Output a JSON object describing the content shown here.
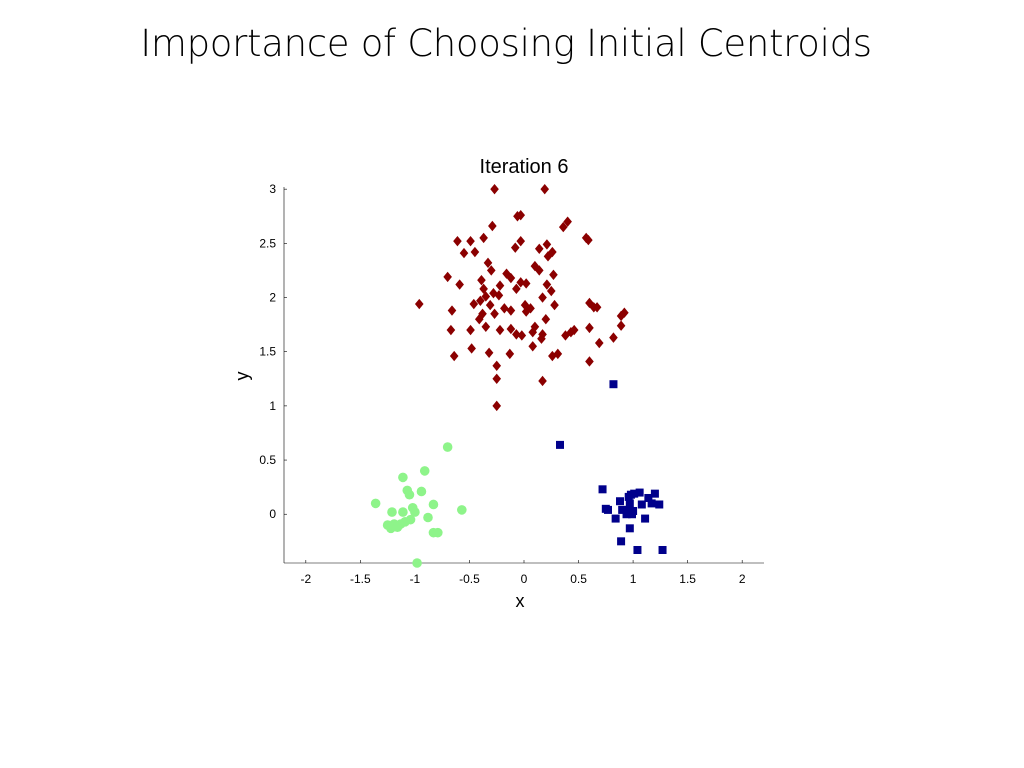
{
  "slide": {
    "title": "Importance of Choosing Initial Centroids"
  },
  "chart_data": {
    "type": "scatter",
    "title": "Iteration 6",
    "xlabel": "x",
    "ylabel": "y",
    "xlim": [
      -2.2,
      2.2
    ],
    "ylim": [
      -0.45,
      3.02
    ],
    "xticks": [
      -2,
      -1.5,
      -1,
      -0.5,
      0,
      0.5,
      1,
      1.5,
      2
    ],
    "xtick_labels": [
      "-2",
      "-1.5",
      "-1",
      "-0.5",
      "0",
      "0.5",
      "1",
      "1.5",
      "2"
    ],
    "yticks": [
      0,
      0.5,
      1,
      1.5,
      2,
      2.5,
      3
    ],
    "ytick_labels": [
      "0",
      "0.5",
      "1",
      "1.5",
      "2",
      "2.5",
      "3"
    ],
    "grid": false,
    "legend": "none",
    "series": [
      {
        "marker": "circle",
        "color": "#8ef48a",
        "points": [
          [
            -0.7,
            0.62
          ],
          [
            -0.91,
            0.4
          ],
          [
            -1.11,
            0.34
          ],
          [
            -1.36,
            0.1
          ],
          [
            -1.07,
            0.22
          ],
          [
            -0.94,
            0.21
          ],
          [
            -1.05,
            0.18
          ],
          [
            -1.02,
            0.06
          ],
          [
            -0.83,
            0.09
          ],
          [
            -0.57,
            0.04
          ],
          [
            -1.21,
            0.02
          ],
          [
            -1.11,
            0.02
          ],
          [
            -1.0,
            0.02
          ],
          [
            -0.88,
            -0.03
          ],
          [
            -1.04,
            -0.05
          ],
          [
            -1.09,
            -0.07
          ],
          [
            -1.13,
            -0.09
          ],
          [
            -1.19,
            -0.09
          ],
          [
            -1.25,
            -0.1
          ],
          [
            -1.22,
            -0.13
          ],
          [
            -1.16,
            -0.12
          ],
          [
            -0.83,
            -0.17
          ],
          [
            -0.79,
            -0.17
          ],
          [
            -0.98,
            -0.45
          ]
        ]
      },
      {
        "marker": "diamond",
        "color": "#8b0000",
        "points": [
          [
            -0.27,
            3.0
          ],
          [
            0.19,
            3.0
          ],
          [
            -0.06,
            2.75
          ],
          [
            -0.03,
            2.76
          ],
          [
            0.4,
            2.7
          ],
          [
            0.36,
            2.65
          ],
          [
            -0.29,
            2.66
          ],
          [
            0.57,
            2.55
          ],
          [
            0.59,
            2.53
          ],
          [
            -0.61,
            2.52
          ],
          [
            -0.49,
            2.52
          ],
          [
            -0.37,
            2.55
          ],
          [
            -0.03,
            2.52
          ],
          [
            0.21,
            2.49
          ],
          [
            0.14,
            2.45
          ],
          [
            0.26,
            2.42
          ],
          [
            -0.08,
            2.46
          ],
          [
            -0.55,
            2.41
          ],
          [
            -0.45,
            2.42
          ],
          [
            0.22,
            2.38
          ],
          [
            -0.33,
            2.32
          ],
          [
            -0.3,
            2.25
          ],
          [
            -0.16,
            2.22
          ],
          [
            -0.12,
            2.18
          ],
          [
            0.1,
            2.29
          ],
          [
            0.14,
            2.25
          ],
          [
            0.27,
            2.21
          ],
          [
            -0.7,
            2.19
          ],
          [
            -0.39,
            2.16
          ],
          [
            0.21,
            2.12
          ],
          [
            -0.03,
            2.14
          ],
          [
            0.02,
            2.13
          ],
          [
            -0.22,
            2.11
          ],
          [
            -0.07,
            2.08
          ],
          [
            -0.59,
            2.12
          ],
          [
            -0.37,
            2.08
          ],
          [
            0.25,
            2.06
          ],
          [
            -0.28,
            2.04
          ],
          [
            -0.35,
            2.01
          ],
          [
            -0.23,
            2.02
          ],
          [
            0.17,
            2.0
          ],
          [
            -0.4,
            1.97
          ],
          [
            -0.46,
            1.94
          ],
          [
            -0.31,
            1.93
          ],
          [
            0.01,
            1.93
          ],
          [
            0.28,
            1.93
          ],
          [
            -0.96,
            1.94
          ],
          [
            0.6,
            1.95
          ],
          [
            0.67,
            1.91
          ],
          [
            0.64,
            1.91
          ],
          [
            0.06,
            1.9
          ],
          [
            -0.12,
            1.88
          ],
          [
            -0.18,
            1.9
          ],
          [
            0.02,
            1.87
          ],
          [
            -0.66,
            1.88
          ],
          [
            -0.38,
            1.85
          ],
          [
            -0.27,
            1.85
          ],
          [
            -0.41,
            1.8
          ],
          [
            0.2,
            1.8
          ],
          [
            0.92,
            1.86
          ],
          [
            0.89,
            1.83
          ],
          [
            0.89,
            1.74
          ],
          [
            0.6,
            1.72
          ],
          [
            -0.35,
            1.73
          ],
          [
            -0.12,
            1.71
          ],
          [
            0.1,
            1.73
          ],
          [
            0.43,
            1.68
          ],
          [
            0.46,
            1.7
          ],
          [
            -0.67,
            1.7
          ],
          [
            -0.49,
            1.7
          ],
          [
            -0.22,
            1.7
          ],
          [
            -0.07,
            1.66
          ],
          [
            -0.02,
            1.65
          ],
          [
            0.08,
            1.68
          ],
          [
            0.17,
            1.66
          ],
          [
            0.38,
            1.65
          ],
          [
            0.16,
            1.62
          ],
          [
            0.69,
            1.58
          ],
          [
            -0.48,
            1.53
          ],
          [
            0.08,
            1.55
          ],
          [
            -0.32,
            1.49
          ],
          [
            -0.13,
            1.48
          ],
          [
            0.26,
            1.46
          ],
          [
            0.31,
            1.48
          ],
          [
            -0.64,
            1.46
          ],
          [
            0.6,
            1.41
          ],
          [
            -0.25,
            1.37
          ],
          [
            -0.25,
            1.25
          ],
          [
            0.17,
            1.23
          ],
          [
            -0.25,
            1.0
          ],
          [
            0.82,
            1.63
          ]
        ]
      },
      {
        "marker": "square",
        "color": "#00008b",
        "points": [
          [
            0.72,
            0.23
          ],
          [
            1.06,
            0.2
          ],
          [
            0.98,
            0.18
          ],
          [
            1.01,
            0.19
          ],
          [
            1.2,
            0.19
          ],
          [
            1.14,
            0.15
          ],
          [
            0.96,
            0.16
          ],
          [
            0.88,
            0.12
          ],
          [
            1.17,
            0.1
          ],
          [
            1.24,
            0.09
          ],
          [
            0.97,
            0.1
          ],
          [
            1.08,
            0.09
          ],
          [
            0.75,
            0.05
          ],
          [
            0.77,
            0.04
          ],
          [
            0.9,
            0.04
          ],
          [
            0.95,
            0.04
          ],
          [
            1.0,
            0.03
          ],
          [
            0.94,
            0.0
          ],
          [
            0.99,
            0.0
          ],
          [
            0.84,
            -0.04
          ],
          [
            1.11,
            -0.04
          ],
          [
            0.97,
            -0.13
          ],
          [
            0.89,
            -0.25
          ],
          [
            1.04,
            -0.33
          ],
          [
            1.27,
            -0.33
          ],
          [
            0.33,
            0.64
          ],
          [
            0.82,
            1.2
          ]
        ]
      }
    ]
  }
}
